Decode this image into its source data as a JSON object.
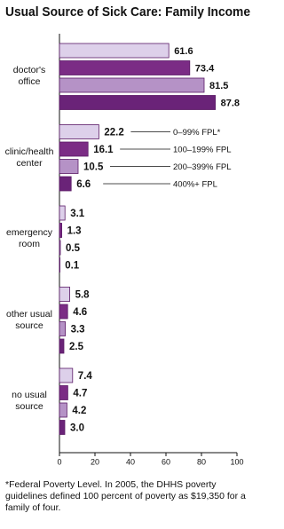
{
  "chart_data": {
    "type": "hbar",
    "title": "Usual Source of Sick Care: Family Income",
    "categories": [
      "doctor's office",
      "clinic/health center",
      "emergency room",
      "other usual source",
      "no usual source"
    ],
    "series": [
      {
        "name": "0–99% FPL*",
        "color": "#ddd0ea",
        "values": [
          61.6,
          22.2,
          3.1,
          5.8,
          7.4
        ]
      },
      {
        "name": "100–199% FPL",
        "color": "#7b2c85",
        "values": [
          73.4,
          16.1,
          1.3,
          4.6,
          4.7
        ]
      },
      {
        "name": "200–399% FPL",
        "color": "#b592c6",
        "values": [
          81.5,
          10.5,
          0.5,
          3.3,
          4.2
        ]
      },
      {
        "name": "400%+ FPL",
        "color": "#6a2378",
        "values": [
          87.8,
          6.6,
          0.1,
          2.5,
          3.0
        ],
        "value_labels": [
          "87.8",
          "6.6",
          "0.1",
          "2.5",
          "3.0"
        ]
      }
    ],
    "xlim": [
      0,
      100
    ],
    "xticks": [
      0,
      20,
      40,
      60,
      80,
      100
    ],
    "footnote": "*Federal Poverty Level. In 2005, the DHHS poverty guidelines defined 100 percent of poverty as $19,350 for a family of four."
  }
}
